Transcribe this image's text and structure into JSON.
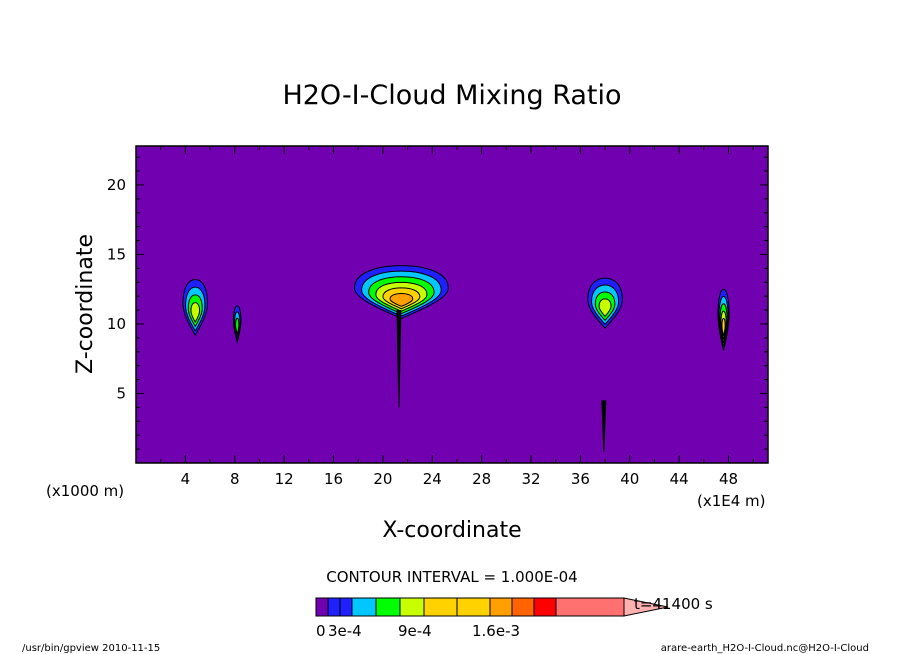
{
  "chart_data": {
    "type": "heatmap",
    "title": "H2O-I-Cloud Mixing Ratio",
    "xlabel": "X-coordinate",
    "ylabel": "Z-coordinate",
    "x_unit_note": "(x1000 m)",
    "x_scale_note": "(x1E4 m)",
    "x_ticks": [
      "4",
      "8",
      "12",
      "16",
      "20",
      "24",
      "28",
      "32",
      "36",
      "40",
      "44",
      "48"
    ],
    "y_ticks": [
      "5",
      "10",
      "15",
      "20"
    ],
    "xlim": [
      0,
      51.2
    ],
    "ylim": [
      0,
      22.8
    ],
    "background_color": "#7000b0",
    "contour_interval_text": "CONTOUR INTERVAL = 1.000E-04",
    "time_label": "t=41400 s",
    "colorbar_labels": [
      "0",
      "3e-4",
      "9e-4",
      "1.6e-3"
    ],
    "colorbar_colors": [
      "#7000b0",
      "#2020ff",
      "#2020ff",
      "#00c8ff",
      "#00ff00",
      "#c8ff00",
      "#ffd200",
      "#ffd200",
      "#ffa000",
      "#ff6400",
      "#ff0000",
      "#ff7070",
      "#ffb0b0"
    ],
    "contour_levels": [
      "#7000b0",
      "#2020ff",
      "#00c8ff",
      "#00ff00",
      "#c8ff00",
      "#ffd200",
      "#ffa000",
      "#ff6400",
      "#ff0000",
      "#ff7070",
      "#ffb0b0"
    ],
    "footer_left": "/usr/bin/gpview   2010-11-15",
    "footer_right": "arare-earth_H2O-I-Cloud.nc@H2O-I-Cloud",
    "cloud_cells": [
      {
        "x": 4.8,
        "z": 11.2,
        "rx": 1.0,
        "rz": 2.0,
        "levels": 4
      },
      {
        "x": 8.2,
        "z": 10.0,
        "rx": 0.3,
        "rz": 1.3,
        "levels": 3
      },
      {
        "x": 21.5,
        "z": 12.3,
        "rx": 3.8,
        "rz": 1.9,
        "levels": 6
      },
      {
        "x": 38.0,
        "z": 11.5,
        "rx": 1.4,
        "rz": 1.8,
        "levels": 4
      },
      {
        "x": 47.6,
        "z": 10.3,
        "rx": 0.45,
        "rz": 2.2,
        "levels": 5
      }
    ],
    "filaments": [
      {
        "x": 21.3,
        "z_bottom": 4.0,
        "z_top": 11.0
      },
      {
        "x": 37.9,
        "z_bottom": 0.8,
        "z_top": 4.5
      }
    ]
  }
}
